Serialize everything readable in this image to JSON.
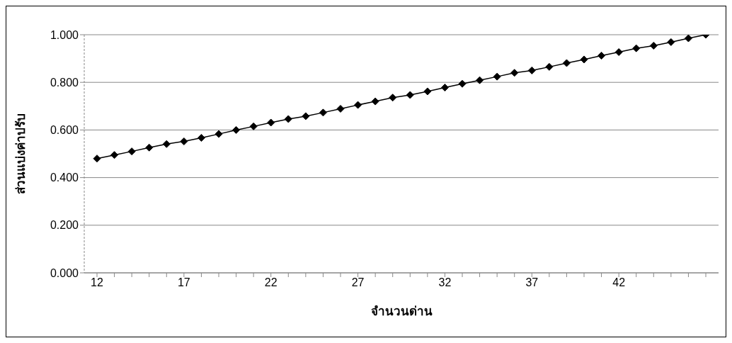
{
  "chart_data": {
    "type": "line",
    "xlabel": "จำนวนด่าน",
    "ylabel": "ส่วนแบ่งค่าปรับ",
    "categories": [
      "12",
      null,
      null,
      null,
      null,
      "17",
      null,
      null,
      null,
      null,
      "22",
      null,
      null,
      null,
      null,
      "27",
      null,
      null,
      null,
      null,
      "32",
      null,
      null,
      null,
      null,
      "37",
      null,
      null,
      null,
      null,
      "42",
      null,
      null,
      null,
      null,
      null
    ],
    "series": [
      {
        "color": "#000000",
        "values": [
          0.48,
          0.495,
          0.51,
          0.526,
          0.541,
          0.552,
          0.567,
          0.583,
          0.6,
          0.615,
          0.631,
          0.646,
          0.658,
          0.673,
          0.689,
          0.705,
          0.72,
          0.736,
          0.747,
          0.762,
          0.778,
          0.794,
          0.809,
          0.824,
          0.84,
          0.85,
          0.865,
          0.881,
          0.896,
          0.912,
          0.927,
          0.943,
          0.954,
          0.969,
          0.985,
          1.0
        ]
      }
    ],
    "ylim": [
      0,
      1
    ],
    "yticks": [
      {
        "value": 0,
        "label": "0.000"
      },
      {
        "value": 0.2,
        "label": "0.200"
      },
      {
        "value": 0.4,
        "label": "0.400"
      },
      {
        "value": 0.6,
        "label": "0.600"
      },
      {
        "value": 0.8,
        "label": "0.800"
      },
      {
        "value": 1,
        "label": "1.000"
      }
    ],
    "grid": "y",
    "legend": false,
    "marker": "diamond",
    "line_style": "solid"
  }
}
